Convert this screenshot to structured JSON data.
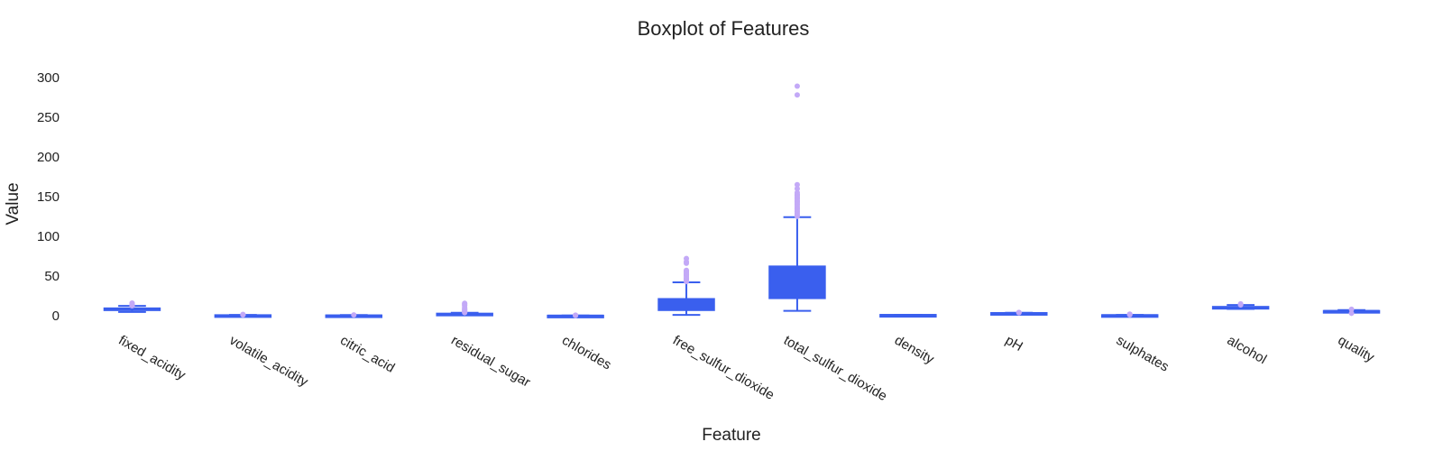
{
  "chart_data": {
    "type": "box",
    "title": "Boxplot of Features",
    "xlabel": "Feature",
    "ylabel": "Value",
    "ylim": [
      -8,
      318
    ],
    "yticks": [
      0,
      50,
      100,
      150,
      200,
      250,
      300
    ],
    "grid": false,
    "legend": "none",
    "colors": {
      "box": "#3a5fee",
      "outlier": "#c3a9f7"
    },
    "categories": [
      "fixed_acidity",
      "volatile_acidity",
      "citric_acid",
      "residual_sugar",
      "chlorides",
      "free_sulfur_dioxide",
      "total_sulfur_dioxide",
      "density",
      "pH",
      "sulphates",
      "alcohol",
      "quality"
    ],
    "boxes": [
      {
        "name": "fixed_acidity",
        "min": 4.6,
        "q1": 7.1,
        "median": 7.9,
        "q3": 9.2,
        "max": 12.3,
        "outliers": [
          12.5,
          12.8,
          13.2,
          13.7,
          14.3,
          15.0,
          15.6,
          15.9
        ]
      },
      {
        "name": "volatile_acidity",
        "min": 0.12,
        "q1": 0.39,
        "median": 0.52,
        "q3": 0.64,
        "max": 1.01,
        "outliers": [
          1.04,
          1.13,
          1.33,
          1.58
        ]
      },
      {
        "name": "citric_acid",
        "min": 0.0,
        "q1": 0.09,
        "median": 0.26,
        "q3": 0.42,
        "max": 0.79,
        "outliers": [
          1.0
        ]
      },
      {
        "name": "residual_sugar",
        "min": 0.9,
        "q1": 1.9,
        "median": 2.2,
        "q3": 2.6,
        "max": 3.6,
        "outliers": [
          3.8,
          4.5,
          5.5,
          6.3,
          7.2,
          8.3,
          9.0,
          10.7,
          12.9,
          13.8,
          15.4,
          15.5
        ]
      },
      {
        "name": "chlorides",
        "min": 0.04,
        "q1": 0.07,
        "median": 0.08,
        "q3": 0.09,
        "max": 0.12,
        "outliers": [
          0.2,
          0.4,
          0.61
        ]
      },
      {
        "name": "free_sulfur_dioxide",
        "min": 1,
        "q1": 7,
        "median": 14,
        "q3": 21,
        "max": 42,
        "outliers": [
          43,
          45,
          46,
          47,
          48,
          50,
          51,
          52,
          53,
          54,
          55,
          56,
          57,
          66,
          68,
          72
        ]
      },
      {
        "name": "total_sulfur_dioxide",
        "min": 6,
        "q1": 22,
        "median": 38,
        "q3": 62,
        "max": 124,
        "outliers": [
          125,
          127,
          129,
          131,
          133,
          135,
          136,
          138,
          140,
          141,
          143,
          144,
          145,
          147,
          148,
          149,
          151,
          152,
          153,
          155,
          160,
          165,
          278,
          289
        ]
      },
      {
        "name": "density",
        "min": 0.992,
        "q1": 0.9956,
        "median": 0.9968,
        "q3": 0.9978,
        "max": 1.001,
        "outliers": []
      },
      {
        "name": "pH",
        "min": 2.9,
        "q1": 3.21,
        "median": 3.31,
        "q3": 3.4,
        "max": 3.68,
        "outliers": [
          3.75,
          3.9,
          4.01
        ]
      },
      {
        "name": "sulphates",
        "min": 0.33,
        "q1": 0.55,
        "median": 0.62,
        "q3": 0.73,
        "max": 1.0,
        "outliers": [
          1.1,
          1.36,
          1.62,
          2.0
        ]
      },
      {
        "name": "alcohol",
        "min": 8.4,
        "q1": 9.5,
        "median": 10.2,
        "q3": 11.1,
        "max": 13.5,
        "outliers": [
          13.6,
          14.0,
          14.9
        ]
      },
      {
        "name": "quality",
        "min": 4,
        "q1": 5,
        "median": 6,
        "q3": 6,
        "max": 7,
        "outliers": [
          3,
          8
        ]
      }
    ]
  }
}
